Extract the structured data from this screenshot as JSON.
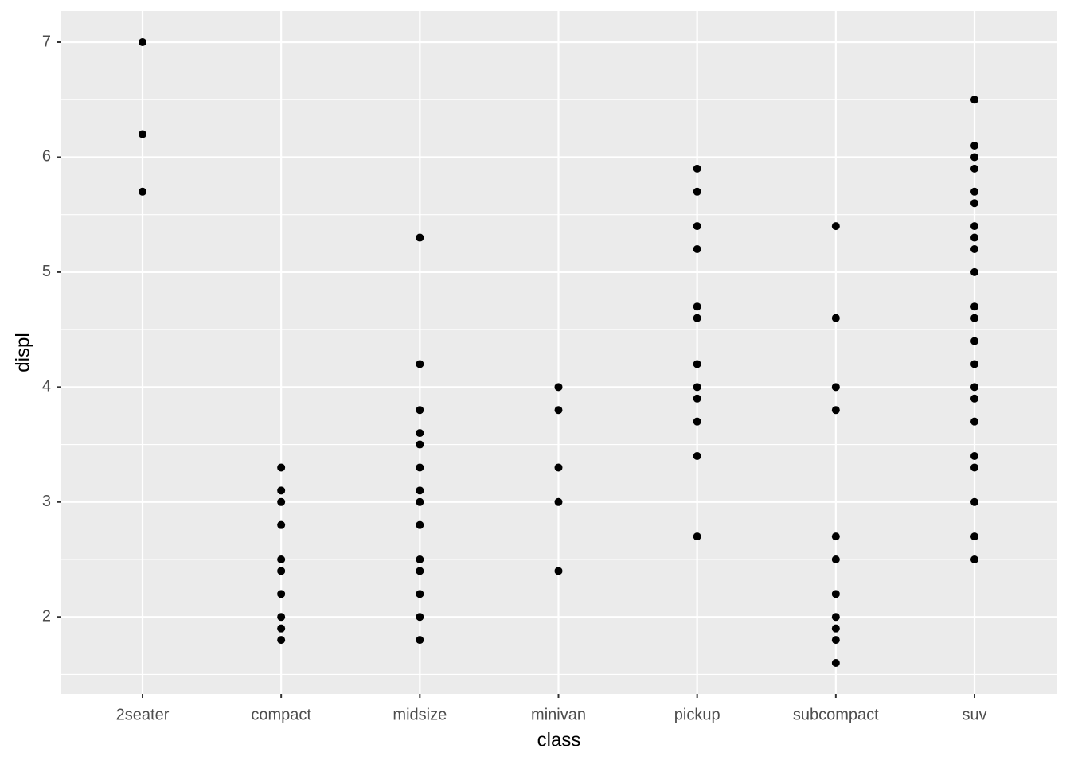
{
  "chart_data": {
    "type": "scatter",
    "categories": [
      "2seater",
      "compact",
      "midsize",
      "minivan",
      "pickup",
      "subcompact",
      "suv"
    ],
    "x_label": "class",
    "y_label": "displ",
    "x": [
      "2seater",
      "2seater",
      "2seater",
      "compact",
      "compact",
      "compact",
      "compact",
      "compact",
      "compact",
      "compact",
      "compact",
      "compact",
      "compact",
      "midsize",
      "midsize",
      "midsize",
      "midsize",
      "midsize",
      "midsize",
      "midsize",
      "midsize",
      "midsize",
      "midsize",
      "midsize",
      "midsize",
      "midsize",
      "midsize",
      "minivan",
      "minivan",
      "minivan",
      "minivan",
      "minivan",
      "pickup",
      "pickup",
      "pickup",
      "pickup",
      "pickup",
      "pickup",
      "pickup",
      "pickup",
      "pickup",
      "pickup",
      "pickup",
      "pickup",
      "subcompact",
      "subcompact",
      "subcompact",
      "subcompact",
      "subcompact",
      "subcompact",
      "subcompact",
      "subcompact",
      "subcompact",
      "subcompact",
      "subcompact",
      "suv",
      "suv",
      "suv",
      "suv",
      "suv",
      "suv",
      "suv",
      "suv",
      "suv",
      "suv",
      "suv",
      "suv",
      "suv",
      "suv",
      "suv",
      "suv",
      "suv",
      "suv",
      "suv",
      "suv",
      "suv",
      "suv"
    ],
    "values": [
      7.0,
      6.2,
      5.7,
      3.3,
      3.1,
      3.0,
      2.8,
      2.5,
      2.4,
      2.2,
      2.0,
      1.9,
      1.8,
      5.3,
      4.2,
      3.8,
      3.6,
      3.5,
      3.3,
      3.1,
      3.0,
      2.8,
      2.5,
      2.4,
      2.2,
      2.0,
      1.8,
      4.0,
      3.8,
      3.3,
      3.0,
      2.4,
      5.9,
      5.7,
      5.4,
      5.2,
      4.7,
      4.6,
      4.2,
      4.0,
      3.9,
      3.7,
      3.4,
      2.7,
      5.4,
      4.6,
      4.0,
      3.8,
      2.7,
      2.5,
      2.2,
      2.0,
      1.9,
      1.8,
      1.6,
      6.5,
      6.1,
      6.0,
      5.9,
      5.7,
      5.6,
      5.4,
      5.3,
      5.2,
      5.0,
      4.7,
      4.6,
      4.4,
      4.2,
      4.0,
      3.9,
      3.7,
      3.4,
      3.3,
      3.0,
      2.7,
      2.5
    ],
    "color": "#000000",
    "ylim": [
      1.33,
      7.27
    ],
    "yticks": [
      2,
      3,
      4,
      5,
      6,
      7
    ],
    "grid": true
  }
}
